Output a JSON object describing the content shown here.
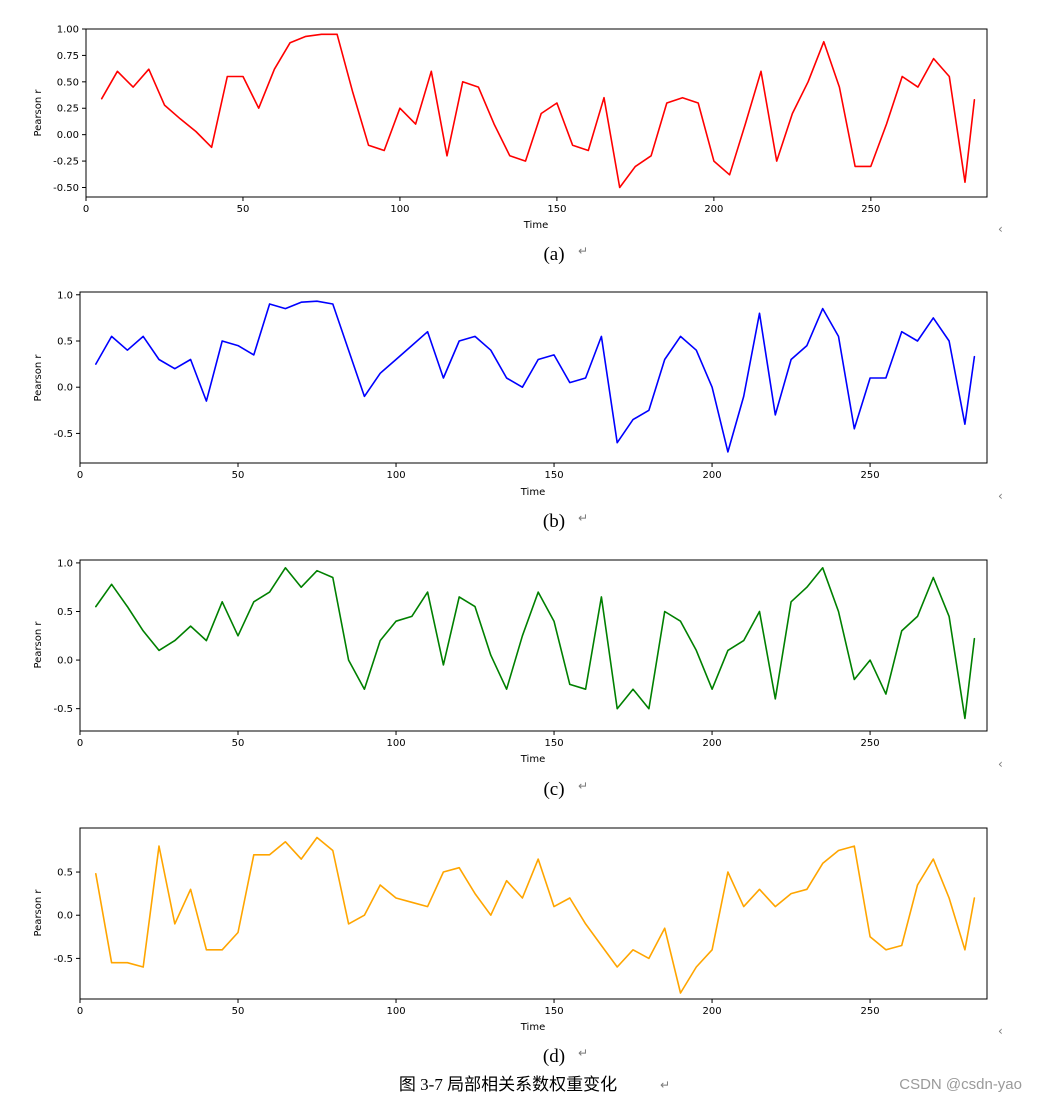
{
  "chart_data": [
    {
      "type": "line",
      "panel_label": "(a)",
      "xlabel": "Time",
      "ylabel": "Pearson r",
      "xlim": [
        0,
        287
      ],
      "ylim": [
        -0.59,
        1.0
      ],
      "xticks": [
        0,
        50,
        100,
        150,
        200,
        250
      ],
      "yticks": [
        -0.5,
        -0.25,
        0.0,
        0.25,
        0.5,
        0.75,
        1.0
      ],
      "ytick_labels": [
        "-0.50",
        "-0.25",
        "0.00",
        "0.25",
        "0.50",
        "0.75",
        "1.00"
      ],
      "color": "#ff0000",
      "grid": false,
      "series": [
        {
          "x": [
            5,
            10,
            15,
            20,
            25,
            30,
            35,
            40,
            45,
            50,
            55,
            60,
            65,
            70,
            75,
            80,
            85,
            90,
            95,
            100,
            105,
            110,
            115,
            120,
            125,
            130,
            135,
            140,
            145,
            150,
            155,
            160,
            165,
            170,
            175,
            180,
            185,
            190,
            195,
            200,
            205,
            210,
            215,
            220,
            225,
            230,
            235,
            240,
            245,
            250,
            255,
            260,
            265,
            270,
            275,
            280,
            283
          ],
          "y": [
            0.34,
            0.6,
            0.45,
            0.62,
            0.28,
            0.15,
            0.03,
            -0.12,
            0.55,
            0.55,
            0.25,
            0.62,
            0.87,
            0.93,
            0.95,
            0.95,
            0.4,
            -0.1,
            -0.15,
            0.25,
            0.1,
            0.6,
            -0.2,
            0.5,
            0.45,
            0.1,
            -0.2,
            -0.25,
            0.2,
            0.3,
            -0.1,
            -0.15,
            0.35,
            -0.5,
            -0.3,
            -0.2,
            0.3,
            0.35,
            0.3,
            -0.25,
            -0.38,
            0.1,
            0.6,
            -0.25,
            0.2,
            0.5,
            0.88,
            0.45,
            -0.3,
            -0.3,
            0.1,
            0.55,
            0.45,
            0.72,
            0.55,
            -0.45,
            0.33
          ]
        }
      ]
    },
    {
      "type": "line",
      "panel_label": "(b)",
      "xlabel": "Time",
      "ylabel": "Pearson r",
      "xlim": [
        0,
        287
      ],
      "ylim": [
        -0.82,
        1.03
      ],
      "xticks": [
        0,
        50,
        100,
        150,
        200,
        250
      ],
      "yticks": [
        -0.5,
        0.0,
        0.5,
        1.0
      ],
      "ytick_labels": [
        "-0.5",
        "0.0",
        "0.5",
        "1.0"
      ],
      "color": "#0000ff",
      "grid": false,
      "series": [
        {
          "x": [
            5,
            10,
            15,
            20,
            25,
            30,
            35,
            40,
            45,
            50,
            55,
            60,
            65,
            70,
            75,
            80,
            85,
            90,
            95,
            100,
            105,
            110,
            115,
            120,
            125,
            130,
            135,
            140,
            145,
            150,
            155,
            160,
            165,
            170,
            175,
            180,
            185,
            190,
            195,
            200,
            205,
            210,
            215,
            220,
            225,
            230,
            235,
            240,
            245,
            250,
            255,
            260,
            265,
            270,
            275,
            280,
            283
          ],
          "y": [
            0.25,
            0.55,
            0.4,
            0.55,
            0.3,
            0.2,
            0.3,
            -0.15,
            0.5,
            0.45,
            0.35,
            0.9,
            0.85,
            0.92,
            0.93,
            0.9,
            0.4,
            -0.1,
            0.15,
            0.3,
            0.45,
            0.6,
            0.1,
            0.5,
            0.55,
            0.4,
            0.1,
            0.0,
            0.3,
            0.35,
            0.05,
            0.1,
            0.55,
            -0.6,
            -0.35,
            -0.25,
            0.3,
            0.55,
            0.4,
            0.0,
            -0.7,
            -0.1,
            0.8,
            -0.3,
            0.3,
            0.45,
            0.85,
            0.55,
            -0.45,
            0.1,
            0.1,
            0.6,
            0.5,
            0.75,
            0.5,
            -0.4,
            0.33
          ]
        }
      ]
    },
    {
      "type": "line",
      "panel_label": "(c)",
      "xlabel": "Time",
      "ylabel": "Pearson r",
      "xlim": [
        0,
        287
      ],
      "ylim": [
        -0.73,
        1.03
      ],
      "xticks": [
        0,
        50,
        100,
        150,
        200,
        250
      ],
      "yticks": [
        -0.5,
        0.0,
        0.5,
        1.0
      ],
      "ytick_labels": [
        "-0.5",
        "0.0",
        "0.5",
        "1.0"
      ],
      "color": "#008000",
      "grid": false,
      "series": [
        {
          "x": [
            5,
            10,
            15,
            20,
            25,
            30,
            35,
            40,
            45,
            50,
            55,
            60,
            65,
            70,
            75,
            80,
            85,
            90,
            95,
            100,
            105,
            110,
            115,
            120,
            125,
            130,
            135,
            140,
            145,
            150,
            155,
            160,
            165,
            170,
            175,
            180,
            185,
            190,
            195,
            200,
            205,
            210,
            215,
            220,
            225,
            230,
            235,
            240,
            245,
            250,
            255,
            260,
            265,
            270,
            275,
            280,
            283
          ],
          "y": [
            0.55,
            0.78,
            0.55,
            0.3,
            0.1,
            0.2,
            0.35,
            0.2,
            0.6,
            0.25,
            0.6,
            0.7,
            0.95,
            0.75,
            0.92,
            0.85,
            0.0,
            -0.3,
            0.2,
            0.4,
            0.45,
            0.7,
            -0.05,
            0.65,
            0.55,
            0.05,
            -0.3,
            0.25,
            0.7,
            0.4,
            -0.25,
            -0.3,
            0.65,
            -0.5,
            -0.3,
            -0.5,
            0.5,
            0.4,
            0.1,
            -0.3,
            0.1,
            0.2,
            0.5,
            -0.4,
            0.6,
            0.75,
            0.95,
            0.5,
            -0.2,
            0.0,
            -0.35,
            0.3,
            0.45,
            0.85,
            0.45,
            -0.6,
            0.22
          ]
        }
      ]
    },
    {
      "type": "line",
      "panel_label": "(d)",
      "xlabel": "Time",
      "ylabel": "Pearson r",
      "xlim": [
        0,
        287
      ],
      "ylim": [
        -0.97,
        1.01
      ],
      "xticks": [
        0,
        50,
        100,
        150,
        200,
        250
      ],
      "yticks": [
        -0.5,
        0.0,
        0.5
      ],
      "ytick_labels": [
        "-0.5",
        "0.0",
        "0.5"
      ],
      "color": "#ffa500",
      "grid": false,
      "series": [
        {
          "x": [
            5,
            10,
            15,
            20,
            25,
            30,
            35,
            40,
            45,
            50,
            55,
            60,
            65,
            70,
            75,
            80,
            85,
            90,
            95,
            100,
            105,
            110,
            115,
            120,
            125,
            130,
            135,
            140,
            145,
            150,
            155,
            160,
            165,
            170,
            175,
            180,
            185,
            190,
            195,
            200,
            205,
            210,
            215,
            220,
            225,
            230,
            235,
            240,
            245,
            250,
            255,
            260,
            265,
            270,
            275,
            280,
            283
          ],
          "y": [
            0.48,
            -0.55,
            -0.55,
            -0.6,
            0.8,
            -0.1,
            0.3,
            -0.4,
            -0.4,
            -0.2,
            0.7,
            0.7,
            0.85,
            0.65,
            0.9,
            0.75,
            -0.1,
            0.0,
            0.35,
            0.2,
            0.15,
            0.1,
            0.5,
            0.55,
            0.25,
            0.0,
            0.4,
            0.2,
            0.65,
            0.1,
            0.2,
            -0.1,
            -0.35,
            -0.6,
            -0.4,
            -0.5,
            -0.15,
            -0.9,
            -0.6,
            -0.4,
            0.5,
            0.1,
            0.3,
            0.1,
            0.25,
            0.3,
            0.6,
            0.75,
            0.8,
            -0.25,
            -0.4,
            -0.35,
            0.35,
            0.65,
            0.2,
            -0.4,
            0.2
          ]
        }
      ]
    }
  ],
  "caption": "图 3-7 局部相关系数权重变化",
  "watermark": "CSDN @csdn-yao",
  "return_mark": "↵",
  "edge_mark": "‹"
}
